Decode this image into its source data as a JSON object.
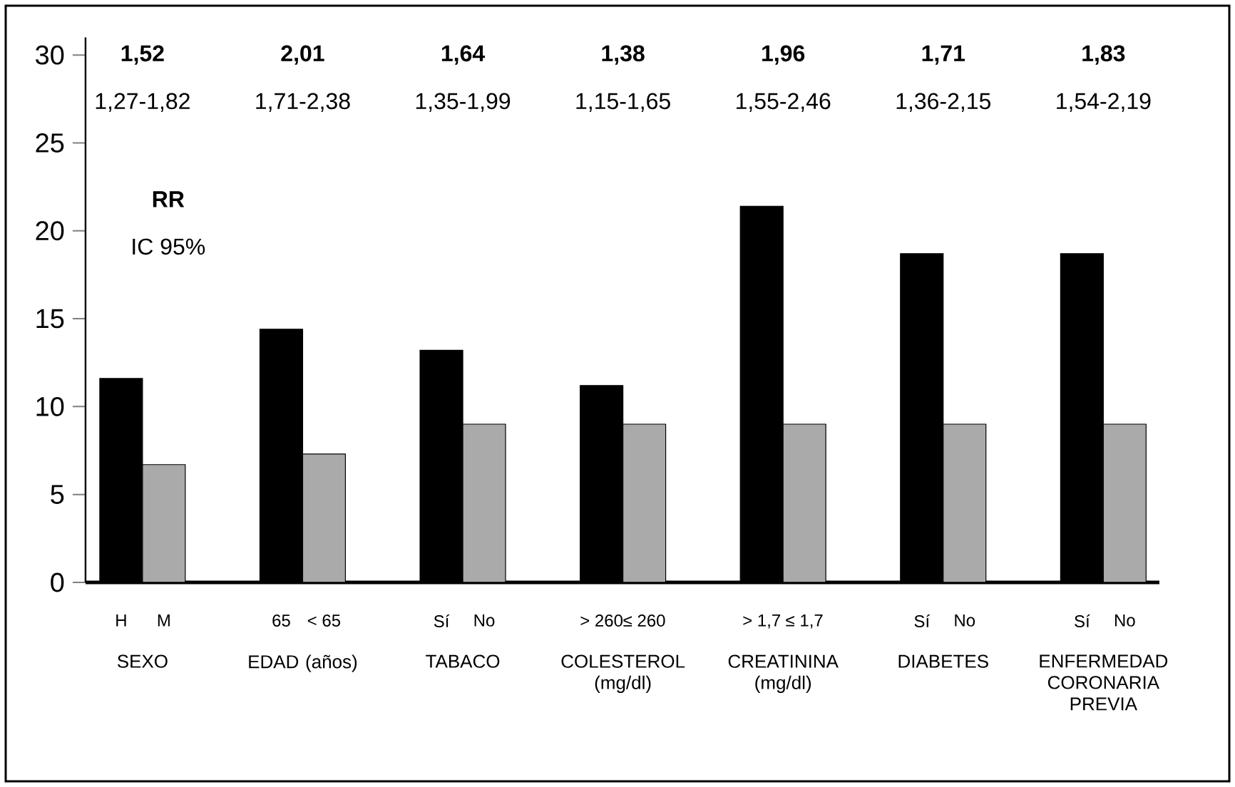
{
  "chart_data": {
    "type": "bar",
    "categories": [
      "H",
      "M",
      "65",
      "< 65",
      "Sí",
      "No",
      "> 260",
      "≤ 260",
      "> 1,7",
      "≤ 1,7",
      "Sí",
      "No",
      "Sí",
      "No"
    ],
    "values": [
      11.6,
      6.7,
      14.4,
      7.3,
      13.2,
      9.0,
      11.2,
      9.0,
      21.4,
      9.0,
      18.7,
      9.0,
      18.7,
      9.0
    ],
    "colors": [
      "#000000",
      "#aaaaaa",
      "#000000",
      "#aaaaaa",
      "#000000",
      "#aaaaaa",
      "#000000",
      "#aaaaaa",
      "#000000",
      "#aaaaaa",
      "#000000",
      "#aaaaaa",
      "#000000",
      "#aaaaaa"
    ],
    "ylim": [
      0,
      31
    ],
    "yticks": [
      0,
      5,
      10,
      15,
      20,
      25,
      30
    ],
    "annotations": [
      "RR",
      "IC 95%",
      "1,52",
      "2,01",
      "1,64",
      "1,38",
      "1,96",
      "1,71",
      "1,83",
      "1,27-1,82",
      "1,71-2,38",
      "1,35-1,99",
      "1,15-1,65",
      "1,55-2,46",
      "1,36-2,15",
      "1,54-2,19",
      "SEXO",
      "EDAD (años)",
      "TABACO",
      "COLESTEROL (mg/dl)",
      "CREATININA (mg/dl)",
      "DIABETES",
      "ENFERMEDAD CORONARIA PREVIA"
    ]
  }
}
